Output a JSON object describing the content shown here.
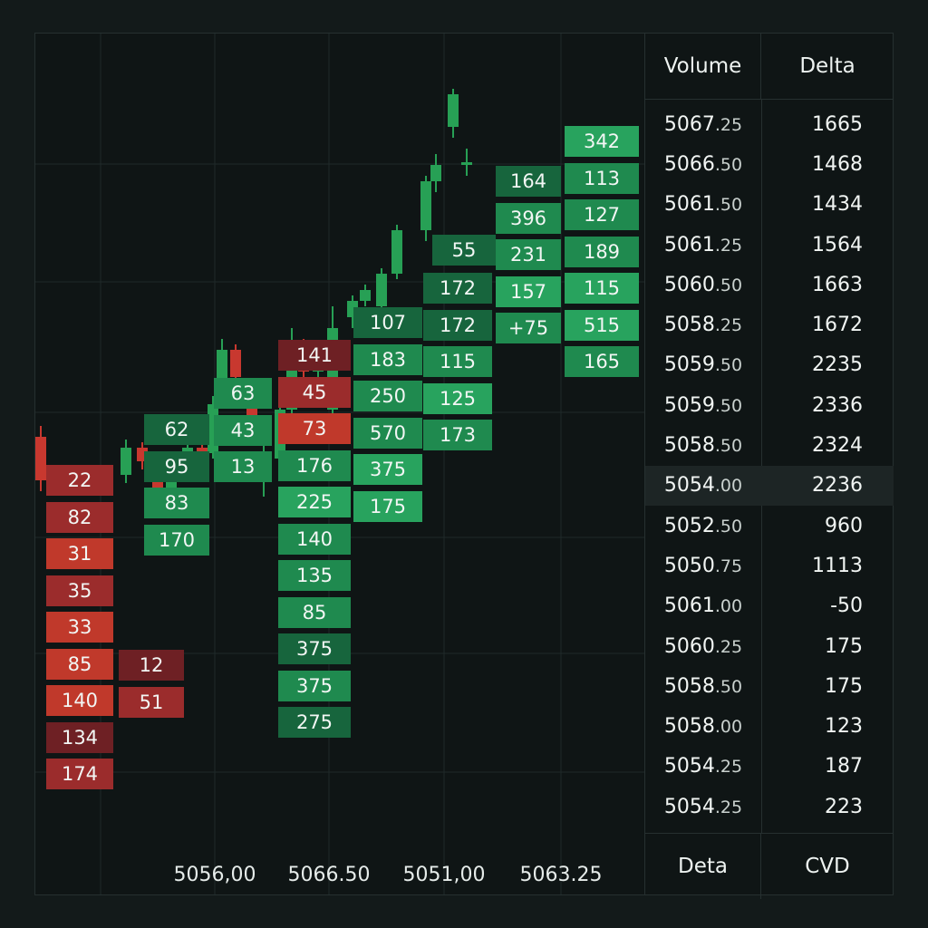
{
  "colors": {
    "sell_strong": "#c0392b",
    "sell_mid": "#9b2c2c",
    "sell_dark": "#6e2024",
    "buy_strong": "#28a35e",
    "buy_mid": "#1f8a4f",
    "buy_dark": "#17653d",
    "candle_up": "#27a055",
    "candle_down": "#c8382f"
  },
  "x_axis": {
    "labels": [
      "5056,00",
      "5066.50",
      "5051,00",
      "5063.25"
    ]
  },
  "footprint": {
    "columns": [
      {
        "cells": [
          {
            "v": "22",
            "s": "sell_mid"
          },
          {
            "v": "82",
            "s": "sell_mid"
          },
          {
            "v": "31",
            "s": "sell_strong"
          },
          {
            "v": "35",
            "s": "sell_mid"
          },
          {
            "v": "33",
            "s": "sell_strong"
          },
          {
            "v": "85",
            "s": "sell_strong"
          },
          {
            "v": "140",
            "s": "sell_strong"
          },
          {
            "v": "134",
            "s": "sell_dark"
          },
          {
            "v": "174",
            "s": "sell_mid"
          }
        ]
      },
      {
        "cells": [
          {
            "v": "12",
            "s": "sell_dark"
          },
          {
            "v": "51",
            "s": "sell_mid"
          }
        ]
      },
      {
        "cells": [
          {
            "v": "62",
            "s": "buy_dark"
          },
          {
            "v": "95",
            "s": "buy_dark"
          },
          {
            "v": "83",
            "s": "buy_mid"
          },
          {
            "v": "170",
            "s": "buy_mid"
          }
        ]
      },
      {
        "cells": [
          {
            "v": "63",
            "s": "buy_mid"
          },
          {
            "v": "43",
            "s": "buy_mid"
          },
          {
            "v": "13",
            "s": "buy_mid"
          }
        ]
      },
      {
        "cells": [
          {
            "v": "141",
            "s": "sell_dark"
          },
          {
            "v": "45",
            "s": "sell_mid"
          },
          {
            "v": "73",
            "s": "sell_strong"
          },
          {
            "v": "176",
            "s": "buy_mid"
          },
          {
            "v": "225",
            "s": "buy_strong"
          },
          {
            "v": "140",
            "s": "buy_mid"
          },
          {
            "v": "135",
            "s": "buy_mid"
          },
          {
            "v": "85",
            "s": "buy_mid"
          },
          {
            "v": "375",
            "s": "buy_dark"
          },
          {
            "v": "375",
            "s": "buy_mid"
          },
          {
            "v": "275",
            "s": "buy_dark"
          }
        ]
      },
      {
        "cells": [
          {
            "v": "107",
            "s": "buy_dark"
          },
          {
            "v": "183",
            "s": "buy_mid"
          },
          {
            "v": "250",
            "s": "buy_mid"
          },
          {
            "v": "570",
            "s": "buy_mid"
          },
          {
            "v": "375",
            "s": "buy_strong"
          },
          {
            "v": "175",
            "s": "buy_strong"
          }
        ]
      },
      {
        "cells": [
          {
            "v": "172",
            "s": "buy_dark"
          },
          {
            "v": "172",
            "s": "buy_dark"
          },
          {
            "v": "115",
            "s": "buy_mid"
          },
          {
            "v": "125",
            "s": "buy_strong"
          },
          {
            "v": "173",
            "s": "buy_mid"
          }
        ]
      },
      {
        "cells": [
          {
            "v": "55",
            "s": "buy_dark"
          }
        ]
      },
      {
        "cells": [
          {
            "v": "164",
            "s": "buy_dark"
          },
          {
            "v": "396",
            "s": "buy_mid"
          },
          {
            "v": "231",
            "s": "buy_mid"
          },
          {
            "v": "157",
            "s": "buy_strong"
          },
          {
            "v": "+75",
            "s": "buy_mid"
          }
        ]
      },
      {
        "cells": [
          {
            "v": "342",
            "s": "buy_strong"
          },
          {
            "v": "113",
            "s": "buy_mid"
          },
          {
            "v": "127",
            "s": "buy_mid"
          },
          {
            "v": "189",
            "s": "buy_mid"
          },
          {
            "v": "115",
            "s": "buy_strong"
          },
          {
            "v": "515",
            "s": "buy_strong"
          },
          {
            "v": "165",
            "s": "buy_mid"
          }
        ]
      }
    ]
  },
  "candles": [
    {
      "o": 100,
      "c": 84,
      "h": 104,
      "l": 80
    },
    {
      "o": 86,
      "c": 96,
      "h": 99,
      "l": 83
    },
    {
      "o": 96,
      "c": 91,
      "h": 98,
      "l": 88
    },
    {
      "o": 90,
      "c": 80,
      "h": 93,
      "l": 73
    },
    {
      "o": 80,
      "c": 89,
      "h": 93,
      "l": 76
    },
    {
      "o": 89,
      "c": 96,
      "h": 99,
      "l": 86
    },
    {
      "o": 96,
      "c": 92,
      "h": 98,
      "l": 88
    },
    {
      "o": 94,
      "c": 112,
      "h": 115,
      "l": 92
    },
    {
      "o": 120,
      "c": 132,
      "h": 136,
      "l": 116
    },
    {
      "o": 132,
      "c": 122,
      "h": 134,
      "l": 118
    },
    {
      "o": 114,
      "c": 100,
      "h": 116,
      "l": 98
    },
    {
      "o": 84,
      "c": 93,
      "h": 104,
      "l": 78
    },
    {
      "o": 92,
      "c": 110,
      "h": 113,
      "l": 86
    },
    {
      "o": 110,
      "c": 134,
      "h": 140,
      "l": 106
    },
    {
      "o": 134,
      "c": 124,
      "h": 136,
      "l": 120
    },
    {
      "o": 124,
      "c": 127,
      "h": 128,
      "l": 118
    },
    {
      "o": 110,
      "c": 140,
      "h": 148,
      "l": 106
    },
    {
      "o": 144,
      "c": 150,
      "h": 152,
      "l": 140
    },
    {
      "o": 150,
      "c": 154,
      "h": 156,
      "l": 148
    },
    {
      "o": 148,
      "c": 160,
      "h": 162,
      "l": 146
    },
    {
      "o": 160,
      "c": 176,
      "h": 178,
      "l": 158
    },
    {
      "o": 176,
      "c": 194,
      "h": 196,
      "l": 172
    },
    {
      "o": 194,
      "c": 200,
      "h": 204,
      "l": 190
    },
    {
      "o": 214,
      "c": 226,
      "h": 228,
      "l": 210
    },
    {
      "o": 200,
      "c": 201,
      "h": 206,
      "l": 196
    }
  ],
  "ladder": {
    "header": {
      "col1": "Volume",
      "col2": "Delta"
    },
    "footer": {
      "col1": "Deta",
      "col2": "CVD"
    },
    "rows": [
      {
        "int": "5067",
        "dec": ".25",
        "delta": "1665"
      },
      {
        "int": "5066",
        "dec": ".50",
        "delta": "1468"
      },
      {
        "int": "5061",
        "dec": ".50",
        "delta": "1434"
      },
      {
        "int": "5061",
        "dec": ".25",
        "delta": "1564"
      },
      {
        "int": "5060",
        "dec": ".50",
        "delta": "1663"
      },
      {
        "int": "5058",
        "dec": ".25",
        "delta": "1672"
      },
      {
        "int": "5059",
        "dec": ".50",
        "delta": "2235"
      },
      {
        "int": "5059",
        "dec": ".50",
        "delta": "2336"
      },
      {
        "int": "5058",
        "dec": ".50",
        "delta": "2324"
      },
      {
        "int": "5054",
        "dec": ".00",
        "delta": "2236",
        "highlight": true
      },
      {
        "int": "5052",
        "dec": ".50",
        "delta": "960"
      },
      {
        "int": "5050",
        "dec": ".75",
        "delta": "1113"
      },
      {
        "int": "5061",
        "dec": ".00",
        "delta": "-50"
      },
      {
        "int": "5060",
        "dec": ".25",
        "delta": "175"
      },
      {
        "int": "5058",
        "dec": ".50",
        "delta": "175"
      },
      {
        "int": "5058",
        "dec": ".00",
        "delta": "123"
      },
      {
        "int": "5054",
        "dec": ".25",
        "delta": "187"
      },
      {
        "int": "5054",
        "dec": ".25",
        "delta": "223"
      }
    ]
  }
}
